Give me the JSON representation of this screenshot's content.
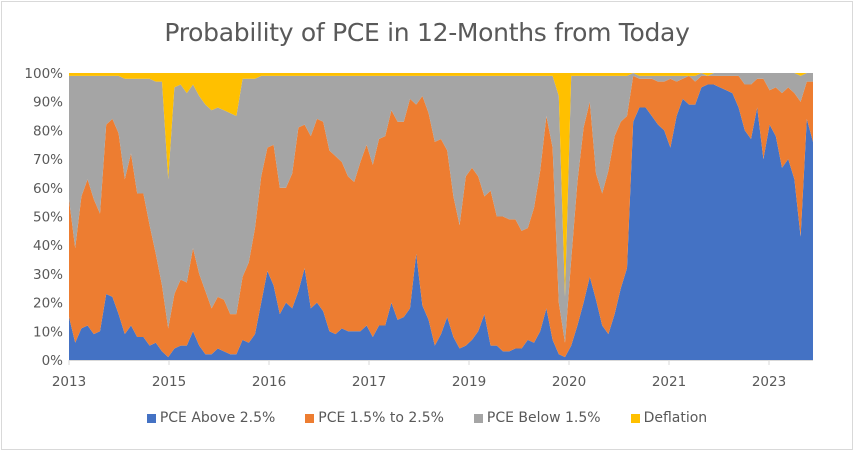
{
  "chart_data": {
    "type": "area",
    "stacked": true,
    "percent": true,
    "title": "Probability of PCE in 12-Months from Today",
    "xlabel": "",
    "ylabel": "",
    "ylim": [
      0,
      100
    ],
    "yticks": [
      "0%",
      "10%",
      "20%",
      "30%",
      "40%",
      "50%",
      "60%",
      "70%",
      "80%",
      "90%",
      "100%"
    ],
    "xtick_labels": [
      "2013",
      "2015",
      "2016",
      "2017",
      "2019",
      "2020",
      "2021",
      "2023"
    ],
    "legend_position": "bottom",
    "grid": false,
    "series": [
      {
        "name": "PCE Above 2.5%",
        "color": "#4472C4",
        "values": [
          15,
          6,
          11,
          12,
          9,
          10,
          23,
          22,
          16,
          9,
          12,
          8,
          8,
          5,
          6,
          3,
          1,
          4,
          5,
          5,
          10,
          5,
          2,
          2,
          4,
          3,
          2,
          2,
          7,
          6,
          9,
          20,
          31,
          26,
          16,
          20,
          18,
          24,
          32,
          18,
          20,
          17,
          10,
          9,
          11,
          10,
          10,
          10,
          12,
          8,
          12,
          12,
          20,
          14,
          15,
          18,
          37,
          19,
          14,
          5,
          9,
          15,
          8,
          4,
          5,
          7,
          10,
          16,
          5,
          5,
          3,
          3,
          4,
          4,
          7,
          6,
          10,
          18,
          7,
          2,
          1,
          5,
          12,
          20,
          29,
          21,
          12,
          9,
          16,
          25,
          32,
          83,
          88,
          88,
          85,
          82,
          80,
          74,
          85,
          91,
          89,
          89,
          95,
          96,
          96,
          95,
          94,
          93,
          88,
          80,
          77,
          88,
          70,
          82,
          78,
          67,
          70,
          63,
          43,
          84,
          76
        ]
      },
      {
        "name": "PCE 1.5% to 2.5%",
        "color": "#ED7D31",
        "values": [
          41,
          33,
          46,
          51,
          47,
          41,
          59,
          62,
          63,
          54,
          60,
          50,
          50,
          42,
          31,
          23,
          10,
          19,
          23,
          22,
          29,
          25,
          22,
          16,
          18,
          18,
          14,
          14,
          22,
          28,
          37,
          44,
          43,
          49,
          44,
          40,
          47,
          57,
          50,
          60,
          64,
          66,
          63,
          62,
          58,
          54,
          52,
          59,
          63,
          60,
          65,
          66,
          67,
          69,
          68,
          73,
          52,
          73,
          72,
          71,
          68,
          58,
          49,
          43,
          59,
          60,
          54,
          41,
          54,
          45,
          47,
          46,
          45,
          41,
          39,
          47,
          56,
          67,
          67,
          18,
          5,
          30,
          50,
          61,
          61,
          44,
          46,
          57,
          62,
          58,
          53,
          16,
          10,
          10,
          13,
          15,
          17,
          24,
          12,
          7,
          10,
          8,
          4,
          3,
          3,
          4,
          5,
          6,
          11,
          16,
          19,
          10,
          28,
          12,
          17,
          26,
          25,
          30,
          47,
          13,
          21
        ]
      },
      {
        "name": "PCE Below 1.5%",
        "color": "#A5A5A5",
        "values": [
          43,
          60,
          42,
          36,
          43,
          48,
          17,
          15,
          20,
          35,
          26,
          40,
          40,
          51,
          60,
          71,
          52,
          72,
          68,
          66,
          57,
          62,
          65,
          69,
          66,
          66,
          70,
          69,
          69,
          64,
          52,
          35,
          25,
          24,
          39,
          39,
          34,
          18,
          17,
          21,
          15,
          16,
          26,
          28,
          30,
          35,
          37,
          30,
          24,
          31,
          22,
          21,
          12,
          16,
          16,
          8,
          10,
          7,
          13,
          23,
          22,
          26,
          42,
          52,
          35,
          32,
          35,
          42,
          40,
          49,
          49,
          50,
          50,
          54,
          53,
          46,
          33,
          14,
          25,
          72,
          16,
          64,
          37,
          18,
          9,
          34,
          41,
          33,
          21,
          16,
          14,
          1,
          1,
          1,
          1,
          2,
          2,
          1,
          2,
          1,
          0,
          2,
          1,
          0,
          1,
          1,
          1,
          1,
          1,
          4,
          4,
          2,
          2,
          6,
          5,
          7,
          5,
          7,
          9,
          3,
          3
        ]
      },
      {
        "name": "Deflation",
        "color": "#FFC000",
        "values": [
          1,
          1,
          1,
          1,
          1,
          1,
          1,
          1,
          1,
          2,
          2,
          2,
          2,
          2,
          3,
          3,
          37,
          5,
          4,
          7,
          4,
          8,
          11,
          13,
          12,
          13,
          14,
          15,
          2,
          2,
          2,
          1,
          1,
          1,
          1,
          1,
          1,
          1,
          1,
          1,
          1,
          1,
          1,
          1,
          1,
          1,
          1,
          1,
          1,
          1,
          1,
          1,
          1,
          1,
          1,
          1,
          1,
          1,
          1,
          1,
          1,
          1,
          1,
          1,
          1,
          1,
          1,
          1,
          1,
          1,
          1,
          1,
          1,
          1,
          1,
          1,
          1,
          1,
          1,
          8,
          78,
          1,
          1,
          1,
          1,
          1,
          1,
          1,
          1,
          1,
          1,
          0,
          1,
          1,
          1,
          1,
          1,
          1,
          1,
          1,
          1,
          1,
          0,
          1,
          0,
          0,
          0,
          0,
          0,
          0,
          0,
          0,
          0,
          0,
          0,
          0,
          0,
          0,
          1,
          0,
          0
        ]
      }
    ]
  },
  "legend": {
    "items": [
      {
        "label": "PCE Above 2.5%",
        "color": "#4472C4"
      },
      {
        "label": "PCE 1.5% to 2.5%",
        "color": "#ED7D31"
      },
      {
        "label": "PCE Below 1.5%",
        "color": "#A5A5A5"
      },
      {
        "label": "Deflation",
        "color": "#FFC000"
      }
    ]
  }
}
